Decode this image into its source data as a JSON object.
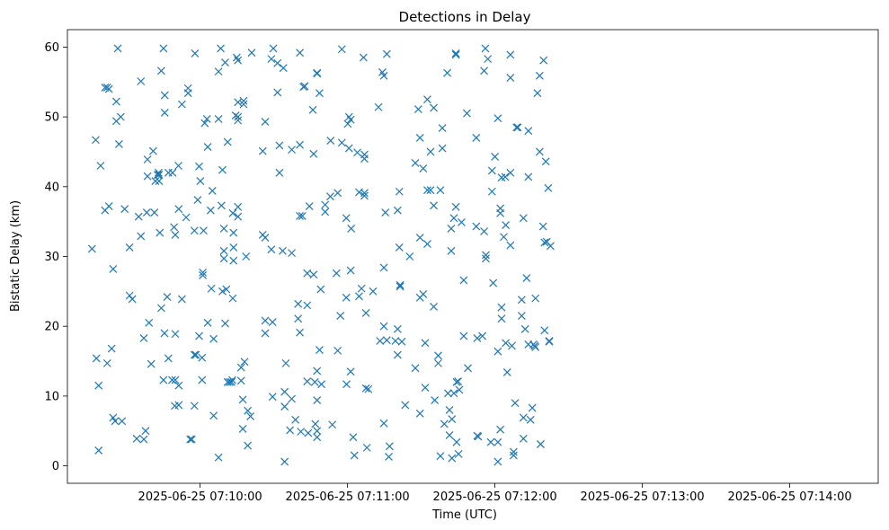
{
  "chart_data": {
    "type": "scatter",
    "title": "Detections in Delay",
    "xlabel": "Time (UTC)",
    "ylabel": "Bistatic Delay (km)",
    "x_axis": {
      "unit": "seconds after 2025-06-25 07:09:00 UTC",
      "range": [
        6,
        336
      ],
      "ticks": [
        60,
        120,
        180,
        240,
        300
      ],
      "tick_labels": [
        "2025-06-25 07:10:00",
        "2025-06-25 07:11:00",
        "2025-06-25 07:12:00",
        "2025-06-25 07:13:00",
        "2025-06-25 07:14:00"
      ]
    },
    "y_axis": {
      "range": [
        -2.5,
        62.5
      ],
      "ticks": [
        0,
        10,
        20,
        30,
        40,
        50,
        60
      ]
    },
    "grid": false,
    "marker": "x",
    "color": "#1f77b4",
    "points": [
      [
        16,
        31.1
      ],
      [
        17.5,
        46.7
      ],
      [
        17.8,
        15.4
      ],
      [
        18.7,
        2.2
      ],
      [
        18.7,
        11.5
      ],
      [
        19.5,
        43
      ],
      [
        21.3,
        54.2
      ],
      [
        21.3,
        36.6
      ],
      [
        22.2,
        54.2
      ],
      [
        22.2,
        14.7
      ],
      [
        22.9,
        54
      ],
      [
        22.9,
        37.2
      ],
      [
        24,
        16.8
      ],
      [
        24.6,
        28.2
      ],
      [
        24.6,
        6.9
      ],
      [
        25.4,
        6.4
      ],
      [
        25.9,
        49.4
      ],
      [
        25.9,
        52.2
      ],
      [
        26.5,
        59.8
      ],
      [
        27,
        46.1
      ],
      [
        27.7,
        50
      ],
      [
        28.2,
        6.4
      ],
      [
        29.3,
        36.8
      ],
      [
        31.3,
        24.4
      ],
      [
        31.3,
        31.3
      ],
      [
        32.4,
        23.9
      ],
      [
        34.2,
        3.9
      ],
      [
        35,
        35.7
      ],
      [
        35.9,
        55.1
      ],
      [
        35.9,
        32.9
      ],
      [
        37.1,
        18.3
      ],
      [
        37.1,
        3.8
      ],
      [
        37.8,
        5
      ],
      [
        38.3,
        36.3
      ],
      [
        38.6,
        43.9
      ],
      [
        38.6,
        41.5
      ],
      [
        39.2,
        20.5
      ],
      [
        40.1,
        14.6
      ],
      [
        40.9,
        45.1
      ],
      [
        41.4,
        36.3
      ],
      [
        41.8,
        40.8
      ],
      [
        42.7,
        41.7
      ],
      [
        43.1,
        42
      ],
      [
        43.3,
        41.7
      ],
      [
        43.3,
        40.8
      ],
      [
        43.6,
        33.4
      ],
      [
        44.2,
        22.6
      ],
      [
        44.2,
        56.6
      ],
      [
        45.1,
        59.8
      ],
      [
        45.1,
        12.3
      ],
      [
        45.5,
        19
      ],
      [
        45.6,
        53.1
      ],
      [
        45.6,
        50.6
      ],
      [
        46.6,
        24.2
      ],
      [
        47.1,
        15.4
      ],
      [
        47.1,
        42
      ],
      [
        48.8,
        42
      ],
      [
        48.6,
        12.3
      ],
      [
        49.4,
        34.2
      ],
      [
        49.7,
        8.6
      ],
      [
        49.9,
        33.1
      ],
      [
        49.9,
        18.9
      ],
      [
        49.9,
        12.3
      ],
      [
        51.2,
        43
      ],
      [
        51.3,
        8.7
      ],
      [
        51.3,
        36.8
      ],
      [
        51.3,
        11.5
      ],
      [
        52.6,
        51.8
      ],
      [
        52.6,
        23.9
      ],
      [
        54.3,
        35.6
      ],
      [
        55.1,
        54.1
      ],
      [
        55.1,
        53.4
      ],
      [
        56,
        3.8
      ],
      [
        56.6,
        3.8
      ],
      [
        57.7,
        8.6
      ],
      [
        57.7,
        33.7
      ],
      [
        57.9,
        59.1
      ],
      [
        57.7,
        15.9
      ],
      [
        58.3,
        15.9
      ],
      [
        59,
        38.1
      ],
      [
        59.6,
        18.6
      ],
      [
        59.6,
        42.9
      ],
      [
        60.1,
        40.8
      ],
      [
        60.8,
        12.3
      ],
      [
        60.8,
        15.5
      ],
      [
        61.1,
        27.7
      ],
      [
        61.1,
        27.3
      ],
      [
        61.4,
        33.7
      ],
      [
        61.9,
        49.1
      ],
      [
        62.8,
        49.7
      ],
      [
        63.1,
        45.7
      ],
      [
        63.1,
        20.5
      ],
      [
        64.3,
        36.6
      ],
      [
        64.6,
        25.4
      ],
      [
        65,
        39.4
      ],
      [
        65.5,
        18.2
      ],
      [
        65.5,
        7.2
      ],
      [
        67.5,
        1.2
      ],
      [
        67.5,
        49.7
      ],
      [
        67.5,
        56.5
      ],
      [
        68.4,
        59.8
      ],
      [
        68.7,
        37.3
      ],
      [
        69.1,
        25
      ],
      [
        69.1,
        42.4
      ],
      [
        69.7,
        34
      ],
      [
        69.7,
        30.8
      ],
      [
        69.7,
        29.7
      ],
      [
        70.2,
        57.8
      ],
      [
        70.2,
        20.4
      ],
      [
        70.7,
        25.3
      ],
      [
        71.2,
        12
      ],
      [
        71.2,
        46.4
      ],
      [
        72,
        12
      ],
      [
        72.8,
        12
      ],
      [
        73.1,
        12.3
      ],
      [
        73.3,
        36.2
      ],
      [
        73.3,
        24
      ],
      [
        73.6,
        31.3
      ],
      [
        73.6,
        29.4
      ],
      [
        73.6,
        33.4
      ],
      [
        74.5,
        50.2
      ],
      [
        74.9,
        58.5
      ],
      [
        75.4,
        50
      ],
      [
        75.4,
        52.1
      ],
      [
        75.4,
        49.5
      ],
      [
        75.4,
        37.1
      ],
      [
        75.4,
        35.7
      ],
      [
        75.4,
        58.1
      ],
      [
        76.7,
        14.1
      ],
      [
        76.7,
        12.2
      ],
      [
        77.4,
        9.5
      ],
      [
        77.4,
        5.3
      ],
      [
        77.7,
        51.8
      ],
      [
        77.7,
        52.3
      ],
      [
        78.1,
        14.9
      ],
      [
        78.7,
        30
      ],
      [
        79.4,
        7.9
      ],
      [
        79.4,
        2.9
      ],
      [
        80.5,
        7.1
      ],
      [
        81,
        59.2
      ],
      [
        85.5,
        45.1
      ],
      [
        85.5,
        33.1
      ],
      [
        86.5,
        32.7
      ],
      [
        86.5,
        49.3
      ],
      [
        86.5,
        20.8
      ],
      [
        86.5,
        19
      ],
      [
        89,
        58.3
      ],
      [
        89,
        31
      ],
      [
        89.5,
        9.9
      ],
      [
        89.5,
        20.6
      ],
      [
        89.8,
        59.8
      ],
      [
        91.5,
        57.7
      ],
      [
        91.5,
        53.5
      ],
      [
        92.3,
        45.9
      ],
      [
        92.3,
        42
      ],
      [
        93.6,
        30.8
      ],
      [
        93.9,
        57
      ],
      [
        94.4,
        10.6
      ],
      [
        94.4,
        8.5
      ],
      [
        94.4,
        0.6
      ],
      [
        94.9,
        14.7
      ],
      [
        96.6,
        5.1
      ],
      [
        97.3,
        45.3
      ],
      [
        97.3,
        30.5
      ],
      [
        97.3,
        9.6
      ],
      [
        98.8,
        6.6
      ],
      [
        99.9,
        21.1
      ],
      [
        99.9,
        23.2
      ],
      [
        100.6,
        59.2
      ],
      [
        100.6,
        46
      ],
      [
        100.6,
        35.8
      ],
      [
        100.6,
        19.1
      ],
      [
        101,
        4.9
      ],
      [
        101.6,
        35.8
      ],
      [
        102.1,
        54.3
      ],
      [
        102.6,
        54.4
      ],
      [
        103.6,
        12.1
      ],
      [
        103.6,
        23
      ],
      [
        103.6,
        27.6
      ],
      [
        104,
        4.7
      ],
      [
        104.5,
        37.2
      ],
      [
        105.9,
        51
      ],
      [
        106.2,
        44.7
      ],
      [
        106.2,
        27.4
      ],
      [
        106.7,
        12
      ],
      [
        106.9,
        6
      ],
      [
        107.6,
        56.2
      ],
      [
        107.6,
        56.3
      ],
      [
        107.6,
        9.4
      ],
      [
        107.6,
        5
      ],
      [
        107.6,
        4.1
      ],
      [
        107.6,
        13.6
      ],
      [
        108.6,
        53.4
      ],
      [
        108.6,
        16.6
      ],
      [
        109.1,
        25.3
      ],
      [
        109.4,
        11.7
      ],
      [
        110.9,
        37.4
      ],
      [
        110.9,
        36.4
      ],
      [
        113,
        38.6
      ],
      [
        113.1,
        46.6
      ],
      [
        113.8,
        5.9
      ],
      [
        115.5,
        27.6
      ],
      [
        116,
        39.1
      ],
      [
        116,
        16.5
      ],
      [
        117.1,
        21.5
      ],
      [
        117.7,
        46.3
      ],
      [
        117.7,
        59.7
      ],
      [
        119.5,
        35.5
      ],
      [
        119.5,
        24.1
      ],
      [
        119.6,
        11.7
      ],
      [
        120.1,
        49
      ],
      [
        120.6,
        45.5
      ],
      [
        120.6,
        50
      ],
      [
        121.3,
        49.6
      ],
      [
        121.3,
        28
      ],
      [
        121.3,
        13.5
      ],
      [
        121.5,
        34
      ],
      [
        122.3,
        4.1
      ],
      [
        122.8,
        1.5
      ],
      [
        124,
        44.9
      ],
      [
        124.7,
        24.3
      ],
      [
        124.7,
        39.2
      ],
      [
        125.7,
        25.4
      ],
      [
        126.5,
        58.5
      ],
      [
        126.9,
        44
      ],
      [
        126.9,
        44.6
      ],
      [
        126.9,
        38.7
      ],
      [
        126.9,
        39.1
      ],
      [
        127.5,
        11.1
      ],
      [
        127.5,
        21.9
      ],
      [
        127.9,
        2.6
      ],
      [
        128.5,
        11
      ],
      [
        130.4,
        25
      ],
      [
        132.6,
        51.4
      ],
      [
        133.2,
        17.9
      ],
      [
        134.2,
        56.4
      ],
      [
        134.8,
        55.9
      ],
      [
        134.8,
        28.4
      ],
      [
        134.8,
        20
      ],
      [
        134.8,
        6.1
      ],
      [
        135.4,
        36.3
      ],
      [
        136,
        59
      ],
      [
        136,
        18
      ],
      [
        136.8,
        1.3
      ],
      [
        137.1,
        2.8
      ],
      [
        139.5,
        17.9
      ],
      [
        140.4,
        36.6
      ],
      [
        140.4,
        19.6
      ],
      [
        140.4,
        15.9
      ],
      [
        141.1,
        39.3
      ],
      [
        141.1,
        31.3
      ],
      [
        141.4,
        25.7
      ],
      [
        141.4,
        25.9
      ],
      [
        142.1,
        17.8
      ],
      [
        143.5,
        8.7
      ],
      [
        145.3,
        30
      ],
      [
        147.6,
        43.4
      ],
      [
        147.6,
        14
      ],
      [
        148.8,
        51.1
      ],
      [
        149.5,
        47
      ],
      [
        149.5,
        32.7
      ],
      [
        149.5,
        24.1
      ],
      [
        149.5,
        7.5
      ],
      [
        150.8,
        42.6
      ],
      [
        150.8,
        24.6
      ],
      [
        151.6,
        11.2
      ],
      [
        151.6,
        17.6
      ],
      [
        152.5,
        52.5
      ],
      [
        152.5,
        39.5
      ],
      [
        152.5,
        31.8
      ],
      [
        153.8,
        45
      ],
      [
        153.8,
        39.5
      ],
      [
        155.1,
        22.8
      ],
      [
        155.1,
        37.3
      ],
      [
        155.1,
        51.3
      ],
      [
        155.5,
        9.4
      ],
      [
        156.9,
        15.8
      ],
      [
        156.9,
        14.7
      ],
      [
        157.8,
        39.5
      ],
      [
        157.8,
        1.4
      ],
      [
        158.6,
        45.5
      ],
      [
        158.6,
        48.4
      ],
      [
        159.4,
        6
      ],
      [
        160.9,
        10.4
      ],
      [
        160.6,
        56.3
      ],
      [
        161.5,
        8
      ],
      [
        161.5,
        4.4
      ],
      [
        162.2,
        34
      ],
      [
        162.2,
        30.8
      ],
      [
        162.5,
        1.1
      ],
      [
        162.5,
        6.7
      ],
      [
        163.3,
        10.4
      ],
      [
        163.3,
        35.5
      ],
      [
        164.1,
        37.1
      ],
      [
        164.1,
        58.9
      ],
      [
        164.1,
        59.1
      ],
      [
        164.4,
        3.4
      ],
      [
        164.4,
        12
      ],
      [
        165,
        12.1
      ],
      [
        165.2,
        1.7
      ],
      [
        165.5,
        10.9
      ],
      [
        166.4,
        34.9
      ],
      [
        167.3,
        26.6
      ],
      [
        167.3,
        18.6
      ],
      [
        168.6,
        50.5
      ],
      [
        169,
        14
      ],
      [
        172.4,
        47
      ],
      [
        172.4,
        34.3
      ],
      [
        172.8,
        18.3
      ],
      [
        172.8,
        4.3
      ],
      [
        173.2,
        4.2
      ],
      [
        174.9,
        18.6
      ],
      [
        175.6,
        33.6
      ],
      [
        175.6,
        56.6
      ],
      [
        176.1,
        59.8
      ],
      [
        176.3,
        30.2
      ],
      [
        176.3,
        29.7
      ],
      [
        177.1,
        58.3
      ],
      [
        178.3,
        3.4
      ],
      [
        178.8,
        39.3
      ],
      [
        178.8,
        42.3
      ],
      [
        179.3,
        26.2
      ],
      [
        180,
        44.3
      ],
      [
        181.2,
        0.6
      ],
      [
        181.2,
        3.4
      ],
      [
        181.2,
        49.8
      ],
      [
        181.2,
        16.4
      ],
      [
        182.2,
        5.2
      ],
      [
        182.2,
        36.9
      ],
      [
        182.2,
        36.2
      ],
      [
        182.7,
        41.3
      ],
      [
        182.7,
        22.7
      ],
      [
        182.7,
        21.1
      ],
      [
        183.6,
        32.8
      ],
      [
        184.2,
        41.4
      ],
      [
        184.4,
        34.5
      ],
      [
        184.4,
        17.6
      ],
      [
        185,
        13.4
      ],
      [
        186.3,
        58.9
      ],
      [
        186.3,
        55.6
      ],
      [
        186.3,
        42
      ],
      [
        186.3,
        31.6
      ],
      [
        186.9,
        17.2
      ],
      [
        187.6,
        2
      ],
      [
        187.6,
        1.5
      ],
      [
        188.2,
        9
      ],
      [
        188.8,
        48.5
      ],
      [
        189.3,
        48.5
      ],
      [
        190.9,
        21.5
      ],
      [
        190.9,
        23.8
      ],
      [
        191.6,
        6.9
      ],
      [
        191.6,
        3.9
      ],
      [
        191.6,
        35.5
      ],
      [
        192.3,
        19.6
      ],
      [
        192.9,
        26.9
      ],
      [
        193.6,
        48
      ],
      [
        193.6,
        41.4
      ],
      [
        193.6,
        17.4
      ],
      [
        194.5,
        6.6
      ],
      [
        195.2,
        8.3
      ],
      [
        195.7,
        17.4
      ],
      [
        196.2,
        17.2
      ],
      [
        196.5,
        17
      ],
      [
        196.5,
        24
      ],
      [
        197.3,
        53.4
      ],
      [
        198.2,
        45
      ],
      [
        198.2,
        55.9
      ],
      [
        198.6,
        3.1
      ],
      [
        198.6,
        3.1
      ],
      [
        199.6,
        34.3
      ],
      [
        199.8,
        58.1
      ],
      [
        200.2,
        32
      ],
      [
        200.2,
        19.4
      ],
      [
        200.7,
        43.6
      ],
      [
        201.1,
        32.1
      ],
      [
        201.7,
        39.8
      ],
      [
        202.1,
        17.9
      ],
      [
        202.1,
        17.8
      ],
      [
        202.6,
        31.5
      ]
    ]
  }
}
